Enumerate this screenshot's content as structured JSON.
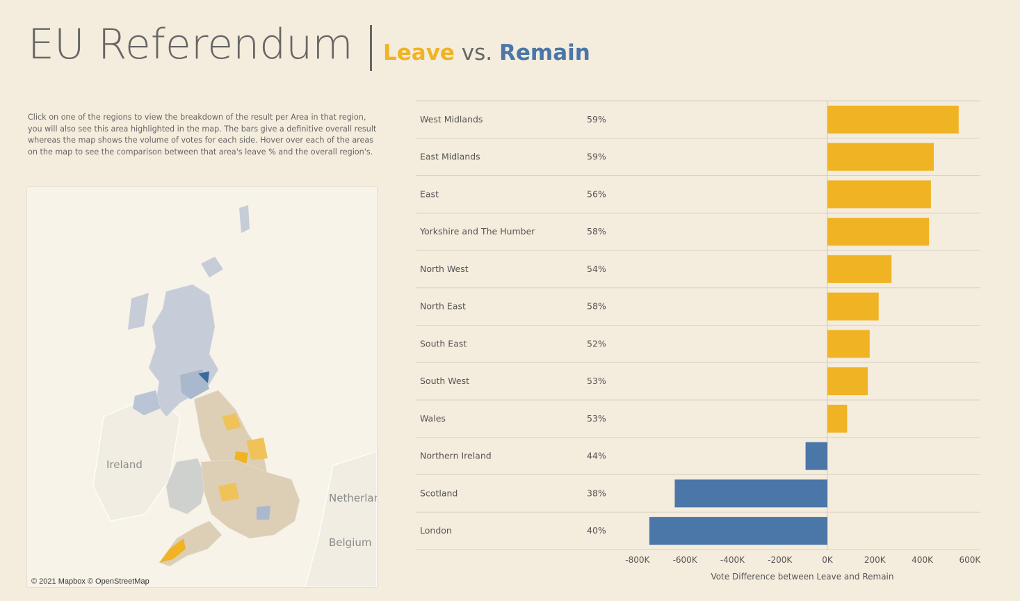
{
  "header": {
    "title": "EU Referendum",
    "leave": "Leave",
    "vs": "vs.",
    "remain": "Remain"
  },
  "description": "Click on one of the regions to view the breakdown of the result per Area in that region, you will also see this area highlighted in the map. The bars give a definitive overall result whereas the map shows the volume of votes for each side. Hover over each of the areas on the map to see the comparison between that area's leave % and the overall region's.",
  "map": {
    "credit": "© 2021 Mapbox © OpenStreetMap",
    "labels": {
      "ireland": "Ireland",
      "netherlands": "Netherlan",
      "belgium": "Belgium"
    }
  },
  "colors": {
    "leave": "#f0b324",
    "remain": "#4a76a8",
    "background": "#f4ecdc"
  },
  "chart_data": {
    "type": "bar",
    "orientation": "horizontal",
    "categories": [
      "West Midlands",
      "East Midlands",
      "East",
      "Yorkshire and The Humber",
      "North West",
      "North East",
      "South East",
      "South West",
      "Wales",
      "Northern Ireland",
      "Scotland",
      "London"
    ],
    "leave_pct": [
      "59%",
      "59%",
      "56%",
      "58%",
      "54%",
      "58%",
      "52%",
      "53%",
      "53%",
      "44%",
      "38%",
      "40%"
    ],
    "values": [
      553000,
      448000,
      436000,
      428000,
      270000,
      216000,
      178000,
      170000,
      83000,
      -92000,
      -643000,
      -750000
    ],
    "xlabel": "Vote Difference between Leave and Remain",
    "xlim": [
      -850000,
      620000
    ],
    "xticks": [
      -800000,
      -600000,
      -400000,
      -200000,
      0,
      200000,
      400000,
      600000
    ],
    "xtick_labels": [
      "-800K",
      "-600K",
      "-400K",
      "-200K",
      "0K",
      "200K",
      "400K",
      "600K"
    ]
  }
}
